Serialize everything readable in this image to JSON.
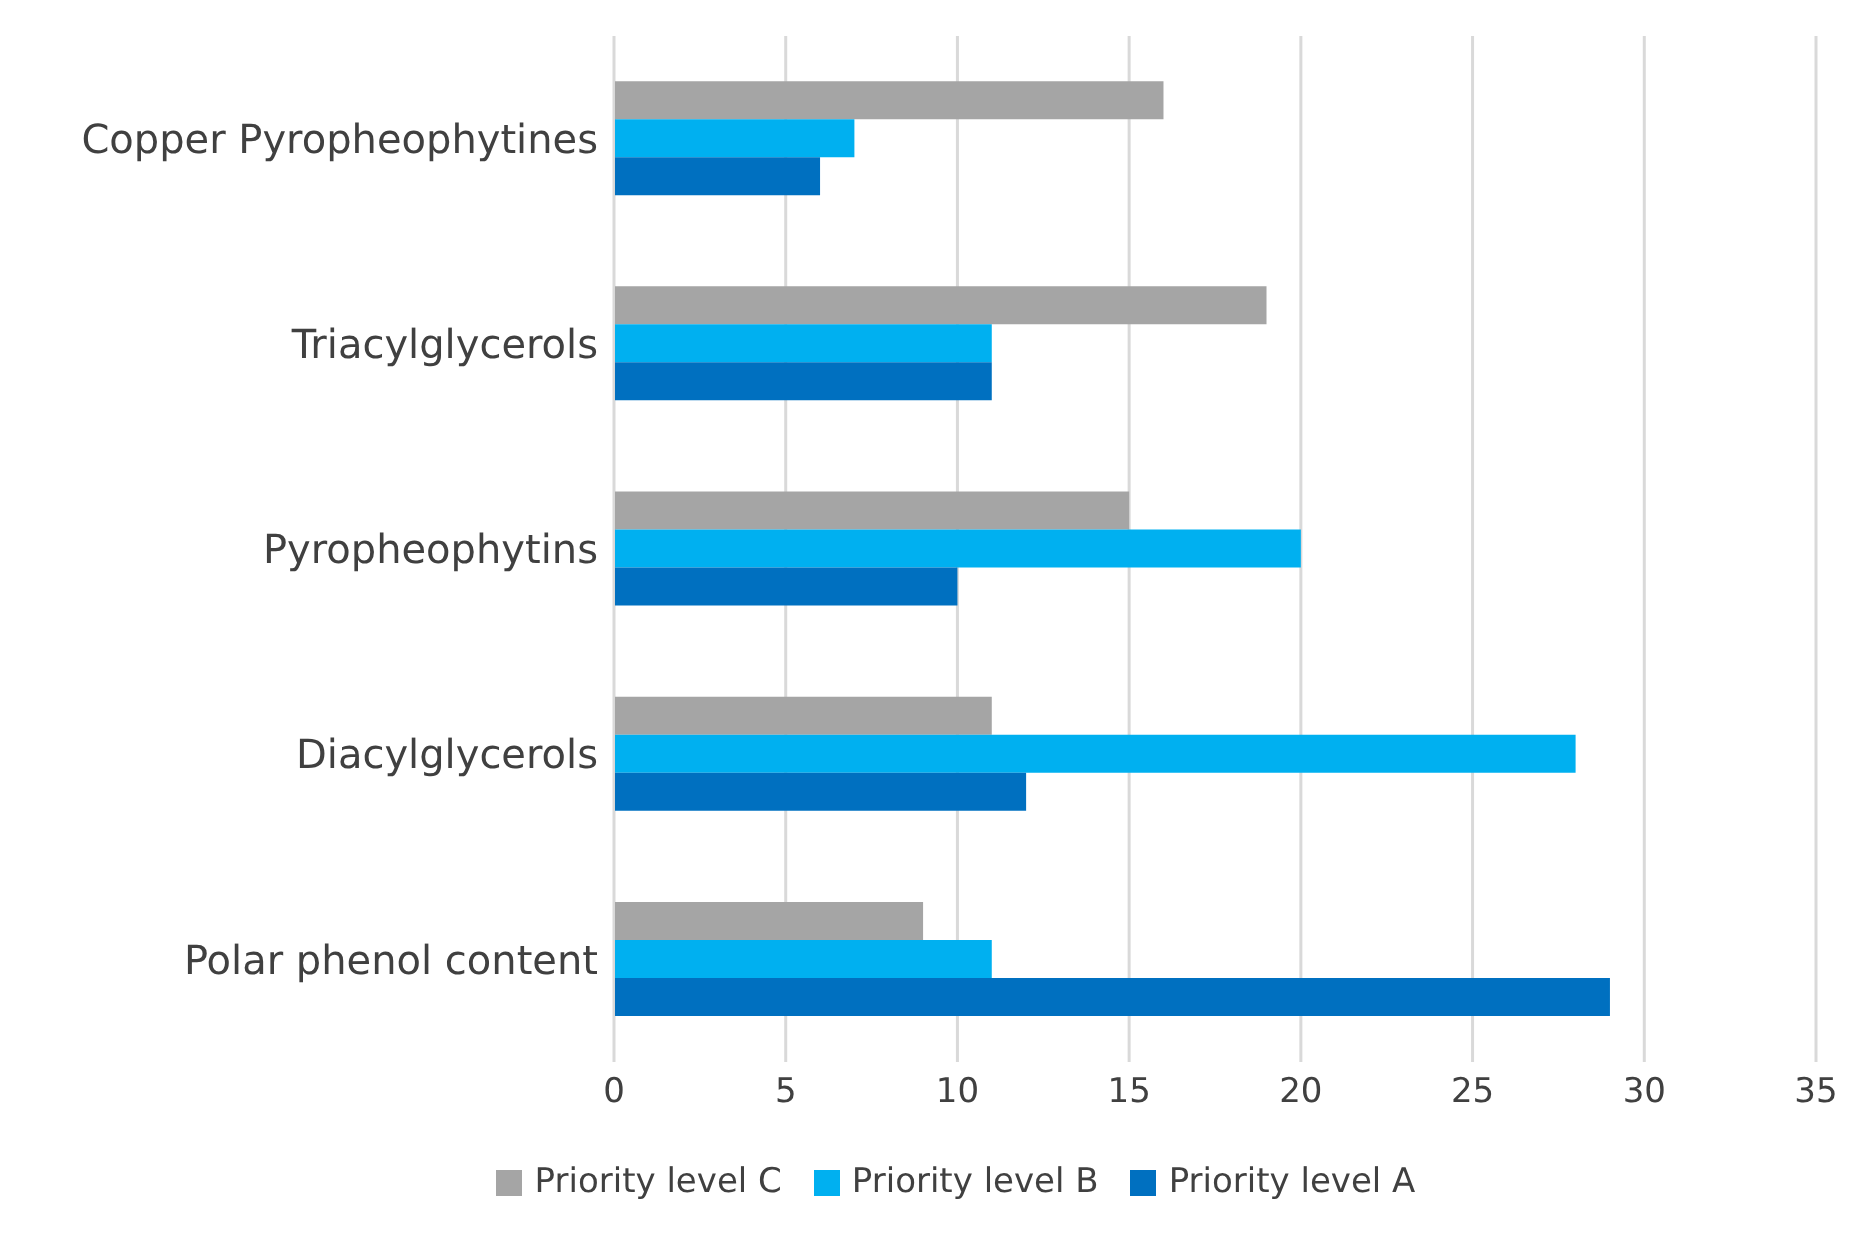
{
  "chart_data": {
    "type": "bar",
    "orientation": "horizontal",
    "categories": [
      "Copper Pyropheophytines",
      "Triacylglycerols",
      "Pyropheophytins",
      "Diacylglycerols",
      "Polar phenol content"
    ],
    "series": [
      {
        "name": "Priority level C",
        "color": "#a5a5a5",
        "values": [
          16,
          19,
          15,
          11,
          9
        ]
      },
      {
        "name": "Priority level B",
        "color": "#00b0f0",
        "values": [
          7,
          11,
          20,
          28,
          11
        ]
      },
      {
        "name": "Priority level A",
        "color": "#0070c0",
        "values": [
          6,
          11,
          10,
          12,
          29
        ]
      }
    ],
    "xlim": [
      0,
      35
    ],
    "xticks": [
      0,
      5,
      10,
      15,
      20,
      25,
      30,
      35
    ],
    "grid": "x",
    "legend": "bottom"
  }
}
